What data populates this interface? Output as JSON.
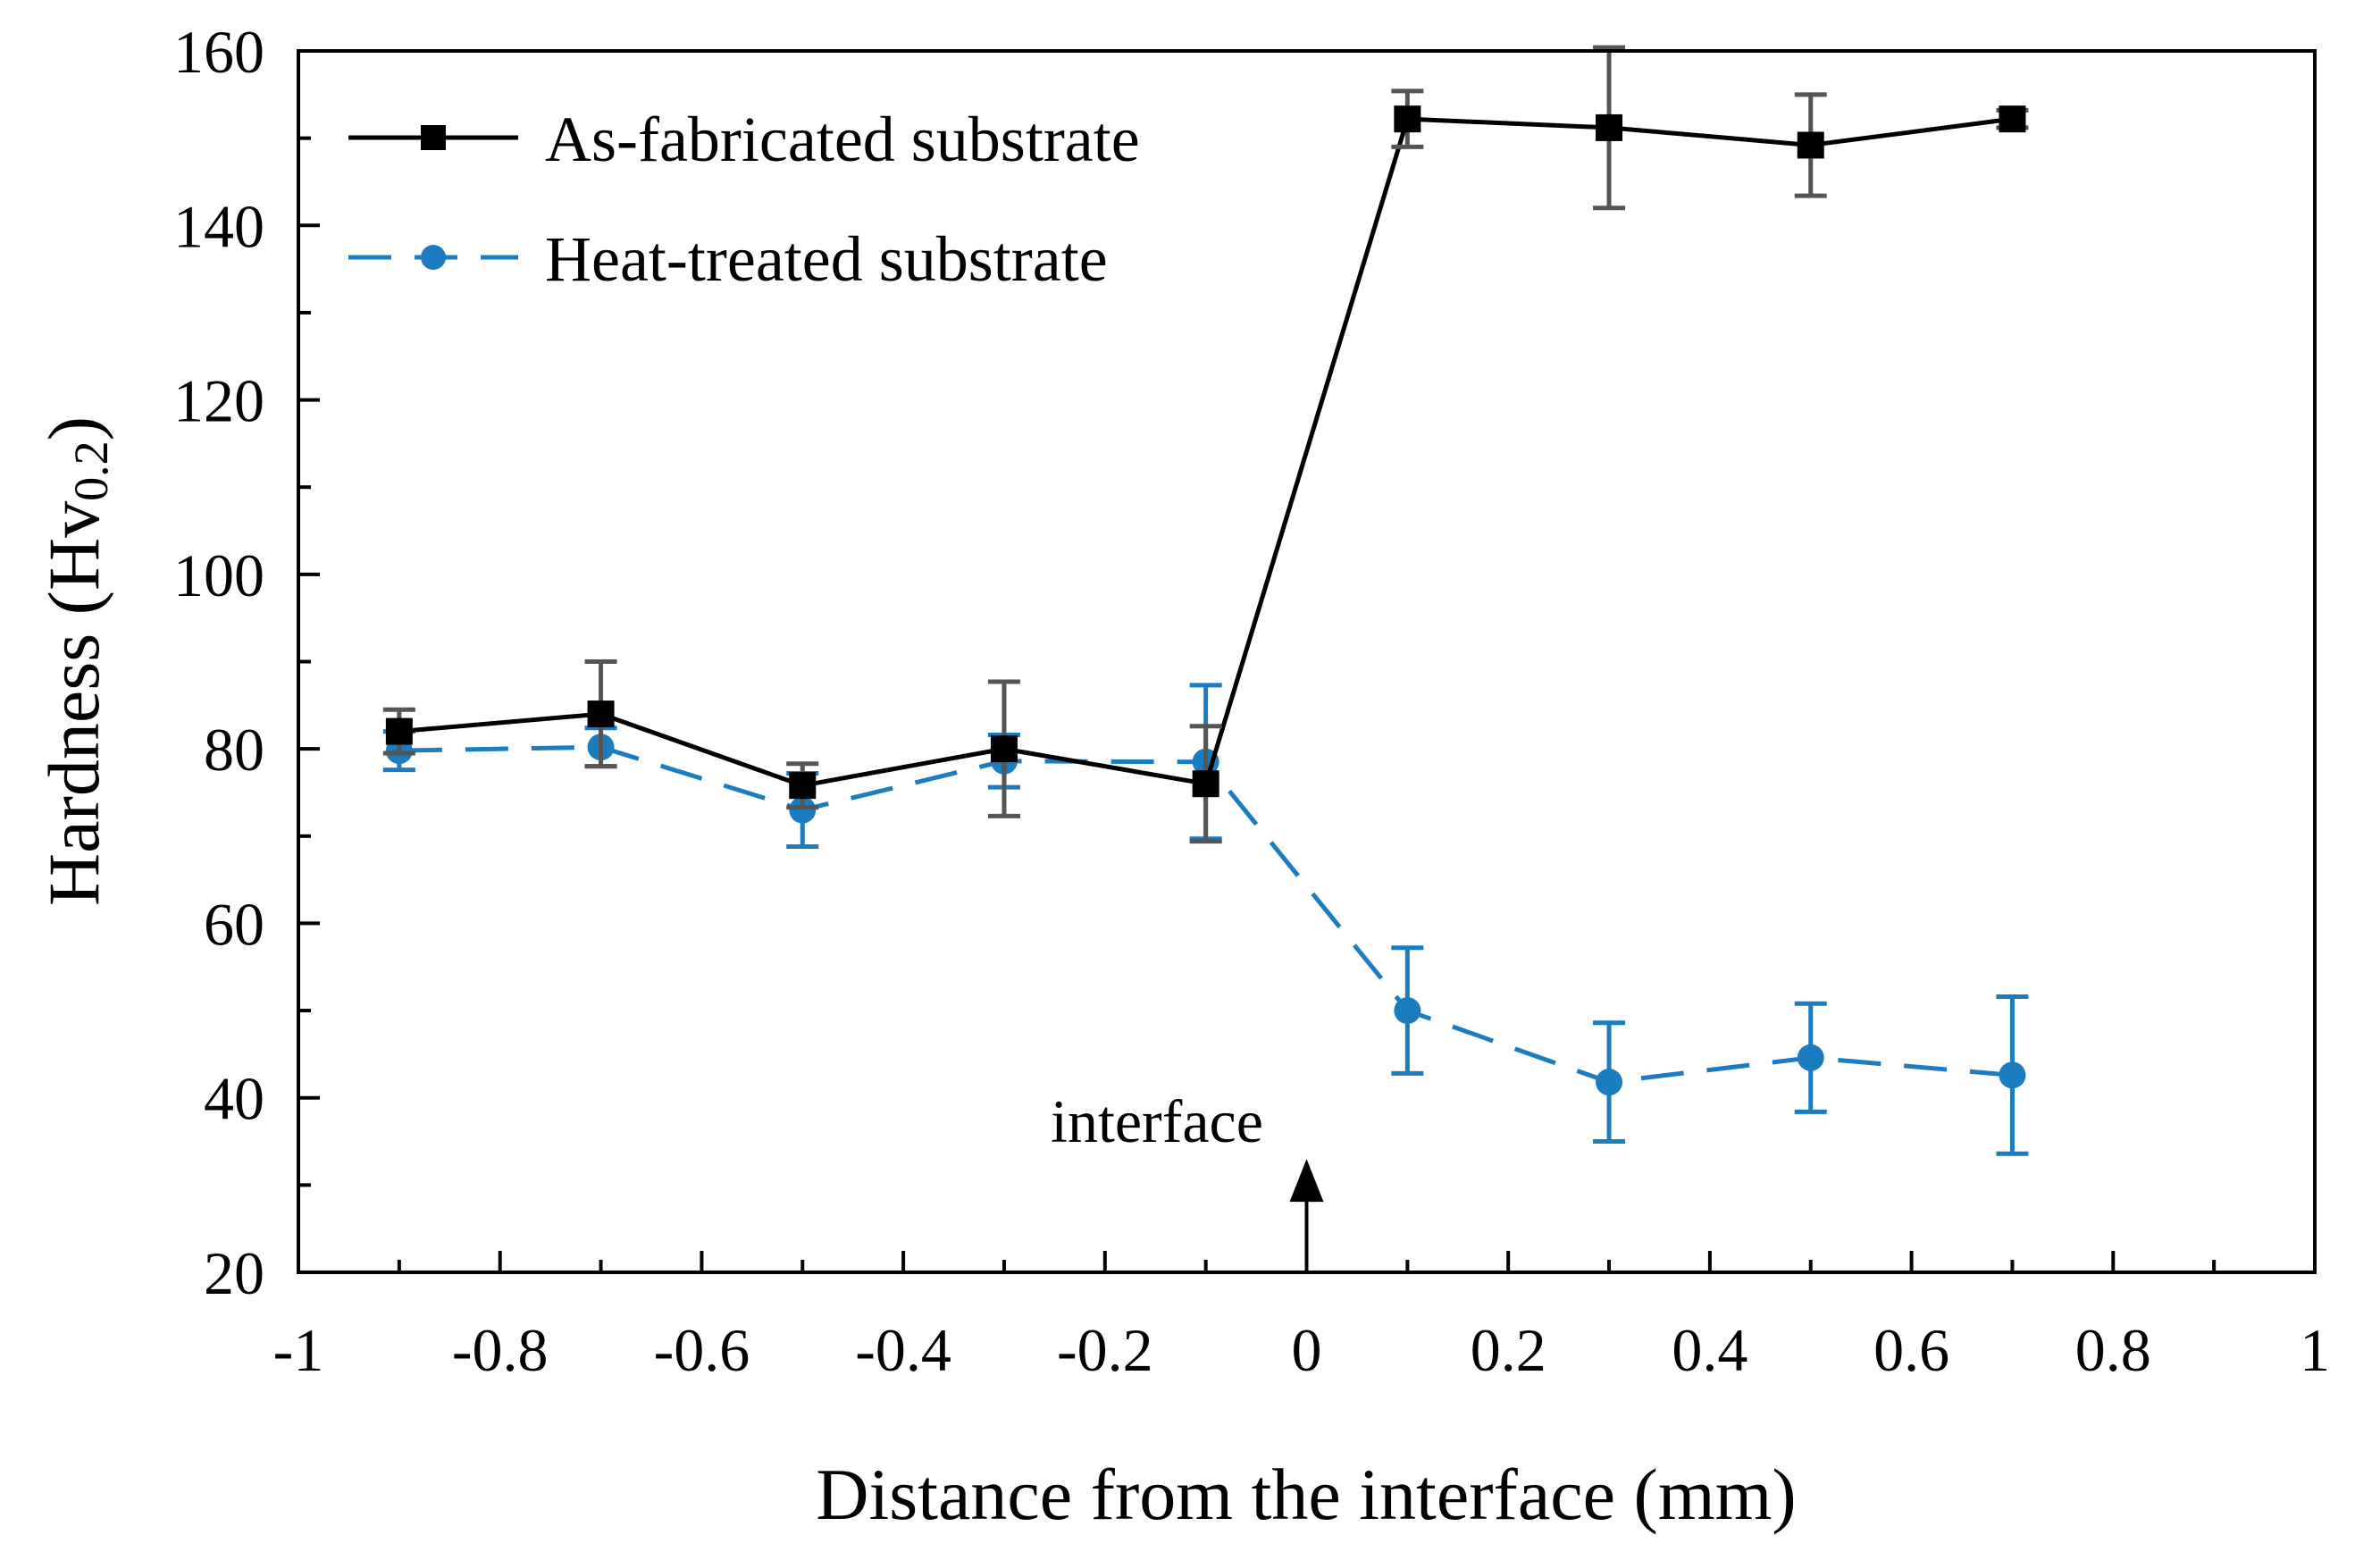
{
  "chart_data": {
    "type": "line",
    "xlabel": "Distance from the interface (mm)",
    "ylabel_main": "Hardness (Hv",
    "ylabel_sub": "0.2",
    "ylabel_close": ")",
    "xlim": [
      -1,
      1
    ],
    "ylim": [
      20,
      160
    ],
    "xticks": [
      -1,
      -0.8,
      -0.6,
      -0.4,
      -0.2,
      0,
      0.2,
      0.4,
      0.6,
      0.8,
      1
    ],
    "xtick_labels": [
      "-1",
      "-0.8",
      "-0.6",
      "-0.4",
      "-0.2",
      "0",
      "0.2",
      "0.4",
      "0.6",
      "0.8",
      "1"
    ],
    "yticks": [
      20,
      40,
      60,
      80,
      100,
      120,
      140,
      160
    ],
    "ytick_labels": [
      "20",
      "40",
      "60",
      "80",
      "100",
      "120",
      "140",
      "160"
    ],
    "x": [
      -0.9,
      -0.7,
      -0.5,
      -0.3,
      -0.1,
      0.1,
      0.3,
      0.5,
      0.7
    ],
    "series": [
      {
        "name": "As-fabricated substrate",
        "color": "#000000",
        "errcolor": "#555555",
        "marker": "square",
        "dash": "solid",
        "values": [
          82,
          84,
          75.8,
          80,
          76,
          152.2,
          151.2,
          149.2,
          152.2
        ],
        "errors": [
          2.5,
          6,
          2.5,
          7.7,
          6.6,
          3.2,
          9.2,
          5.8,
          1
        ]
      },
      {
        "name": "Heat-treated substrate",
        "color": "#1c7cc0",
        "errcolor": "#1c7cc0",
        "marker": "circle",
        "dash": "dashed",
        "values": [
          79.8,
          80.2,
          73,
          78.6,
          78.5,
          50,
          41.8,
          44.6,
          42.6
        ],
        "errors": [
          2.2,
          2.2,
          4.2,
          3,
          8.8,
          7.2,
          6.8,
          6.2,
          9
        ]
      }
    ],
    "annotation": {
      "text": "interface",
      "x": 0,
      "y_start": 20,
      "y_end": 33
    },
    "legend_position": "top-left"
  }
}
